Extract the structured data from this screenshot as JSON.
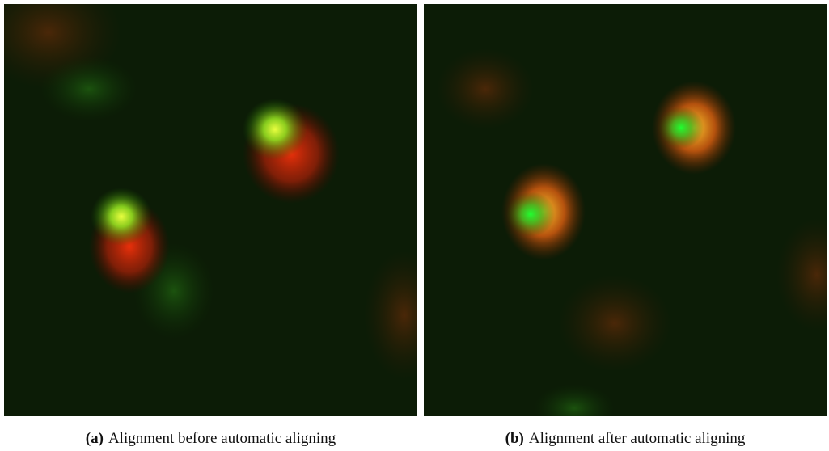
{
  "figures": [
    {
      "label": "(a)",
      "caption": "Alignment before automatic aligning"
    },
    {
      "label": "(b)",
      "caption": "Alignment after automatic aligning"
    }
  ]
}
